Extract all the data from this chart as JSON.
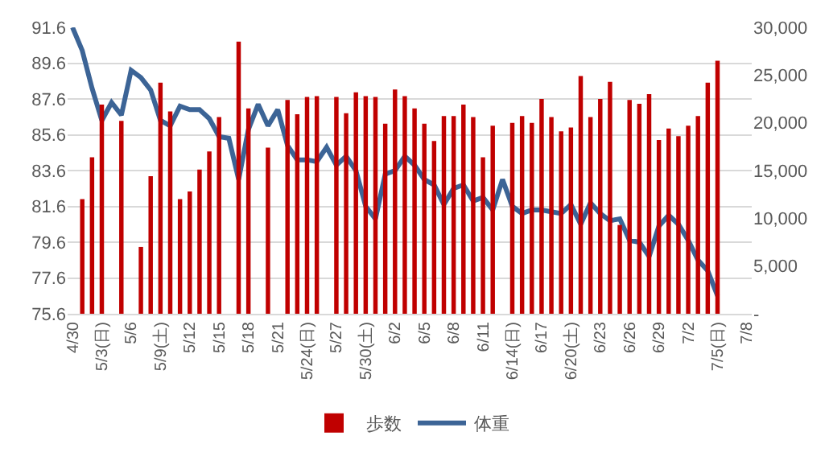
{
  "chart_data": {
    "type": "bar",
    "categories": [
      "4/30",
      null,
      null,
      "5/3(日)",
      null,
      null,
      "5/6",
      null,
      null,
      "5/9(土)",
      null,
      null,
      "5/12",
      null,
      null,
      "5/15",
      null,
      null,
      "5/18",
      null,
      null,
      "5/21",
      null,
      null,
      "5/24(日)",
      null,
      null,
      "5/27",
      null,
      null,
      "5/30(土)",
      null,
      null,
      "6/2",
      null,
      null,
      "6/5",
      null,
      null,
      "6/8",
      null,
      null,
      "6/11",
      null,
      null,
      "6/14(日)",
      null,
      null,
      "6/17",
      null,
      null,
      "6/20(土)",
      null,
      null,
      "6/23",
      null,
      null,
      "6/26",
      null,
      null,
      "6/29",
      null,
      null,
      "7/2",
      null,
      null,
      "7/5(日)",
      null,
      null,
      "7/8"
    ],
    "series": [
      {
        "name": "歩数",
        "axis": "y2",
        "color": "#c00000",
        "values": [
          null,
          12000,
          16400,
          21900,
          null,
          20200,
          null,
          7000,
          14400,
          24200,
          21200,
          12000,
          12800,
          15100,
          17000,
          20600,
          null,
          28500,
          21500,
          null,
          17400,
          null,
          22400,
          20900,
          22700,
          22800,
          null,
          22700,
          21000,
          23200,
          22800,
          22700,
          19900,
          23500,
          22800,
          21500,
          19900,
          18100,
          20700,
          20700,
          21900,
          20600,
          16400,
          19700,
          null,
          20000,
          20700,
          20000,
          22500,
          20600,
          19100,
          19500,
          24900,
          20600,
          22500,
          24300,
          9300,
          22400,
          22000,
          23000,
          18200,
          19400,
          18600,
          19700,
          20700,
          24200,
          26500,
          null,
          null,
          null
        ]
      },
      {
        "name": "体重",
        "type": "line",
        "color": "#3c6496",
        "values": [
          91.6,
          90.3,
          88.2,
          86.4,
          87.4,
          86.7,
          89.2,
          88.8,
          88.1,
          86.4,
          86.1,
          87.2,
          87.0,
          87.0,
          86.5,
          85.5,
          85.4,
          83.1,
          85.9,
          87.3,
          86.1,
          87.0,
          85.0,
          84.2,
          84.2,
          84.1,
          84.9,
          83.9,
          84.4,
          83.6,
          81.6,
          80.9,
          83.4,
          83.6,
          84.4,
          83.9,
          83.1,
          82.8,
          81.7,
          82.6,
          82.8,
          81.9,
          82.1,
          81.4,
          83.1,
          81.6,
          81.2,
          81.4,
          81.4,
          81.3,
          81.2,
          81.7,
          80.6,
          81.8,
          81.2,
          80.8,
          80.9,
          79.7,
          79.6,
          78.8,
          80.5,
          81.1,
          80.6,
          79.7,
          78.6,
          78.0,
          76.6,
          null,
          null,
          null
        ]
      }
    ],
    "ylim": [
      75.6,
      91.6
    ],
    "yticks": [
      75.6,
      77.6,
      79.6,
      81.6,
      83.6,
      85.6,
      87.6,
      89.6,
      91.6
    ],
    "y2lim": [
      0,
      30000
    ],
    "y2ticks": [
      {
        "value": 0,
        "label": "-"
      },
      {
        "value": 5000,
        "label": "5,000"
      },
      {
        "value": 10000,
        "label": "10,000"
      },
      {
        "value": 15000,
        "label": "15,000"
      },
      {
        "value": 20000,
        "label": "20,000"
      },
      {
        "value": 25000,
        "label": "25,000"
      },
      {
        "value": 30000,
        "label": "30,000"
      }
    ],
    "grid": "y",
    "legend": "bottom",
    "marker": "none",
    "line_style": "solid"
  }
}
